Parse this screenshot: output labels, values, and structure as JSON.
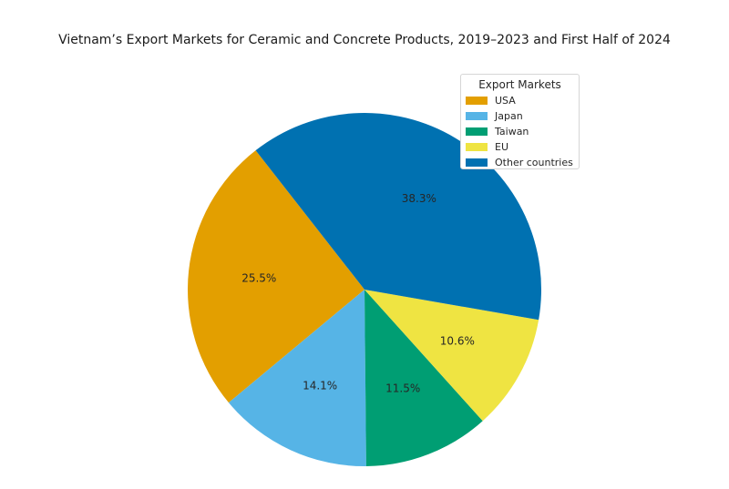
{
  "chart_data": {
    "type": "pie",
    "title": "Vietnam’s Export Markets for Ceramic and Concrete Products, 2019–2023 and First Half of 2024",
    "legend_title": "Export Markets",
    "legend_position": "top-right",
    "categories": [
      "USA",
      "Japan",
      "Taiwan",
      "EU",
      "Other countries"
    ],
    "values": [
      25.5,
      14.1,
      11.5,
      10.6,
      38.3
    ],
    "labels": [
      "25.5%",
      "14.1%",
      "11.5%",
      "10.6%",
      "38.3%"
    ],
    "colors": [
      "#E39F00",
      "#56B4E6",
      "#009E73",
      "#EFE442",
      "#0071B1"
    ],
    "start_angle_deg": 128,
    "direction": "counterclockwise"
  }
}
